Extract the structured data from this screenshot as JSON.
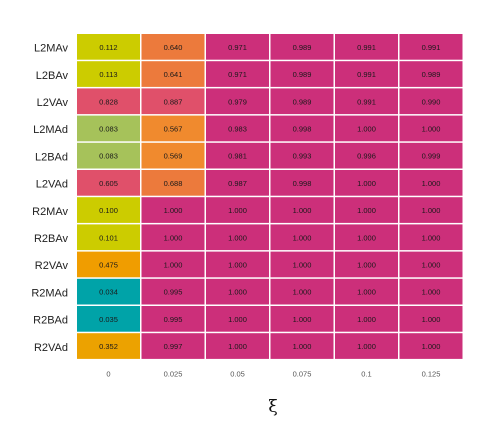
{
  "chart_data": {
    "type": "heatmap",
    "xlabel": "ξ",
    "columns": [
      "0",
      "0.025",
      "0.05",
      "0.075",
      "0.1",
      "0.125"
    ],
    "rows": [
      "L2MAv",
      "L2BAv",
      "L2VAv",
      "L2MAd",
      "L2BAd",
      "L2VAd",
      "R2MAv",
      "R2BAv",
      "R2VAv",
      "R2MAd",
      "R2BAd",
      "R2VAd"
    ],
    "values": [
      [
        "0.112",
        "0.640",
        "0.971",
        "0.989",
        "0.991",
        "0.991"
      ],
      [
        "0.113",
        "0.641",
        "0.971",
        "0.989",
        "0.991",
        "0.989"
      ],
      [
        "0.828",
        "0.887",
        "0.979",
        "0.989",
        "0.991",
        "0.990"
      ],
      [
        "0.083",
        "0.567",
        "0.983",
        "0.998",
        "1.000",
        "1.000"
      ],
      [
        "0.083",
        "0.569",
        "0.981",
        "0.993",
        "0.996",
        "0.999"
      ],
      [
        "0.605",
        "0.688",
        "0.987",
        "0.998",
        "1.000",
        "1.000"
      ],
      [
        "0.100",
        "1.000",
        "1.000",
        "1.000",
        "1.000",
        "1.000"
      ],
      [
        "0.101",
        "1.000",
        "1.000",
        "1.000",
        "1.000",
        "1.000"
      ],
      [
        "0.475",
        "1.000",
        "1.000",
        "1.000",
        "1.000",
        "1.000"
      ],
      [
        "0.034",
        "0.995",
        "1.000",
        "1.000",
        "1.000",
        "1.000"
      ],
      [
        "0.035",
        "0.995",
        "1.000",
        "1.000",
        "1.000",
        "1.000"
      ],
      [
        "0.352",
        "0.997",
        "1.000",
        "1.000",
        "1.000",
        "1.000"
      ]
    ],
    "cell_colors": [
      [
        "#cccc00",
        "#ec7a3c",
        "#cc2f7a",
        "#cc2f7a",
        "#cc2f7a",
        "#cc2f7a"
      ],
      [
        "#cccc00",
        "#ec7a3c",
        "#cc2f7a",
        "#cc2f7a",
        "#cc2f7a",
        "#cc2f7a"
      ],
      [
        "#e0506a",
        "#e0506a",
        "#cc2f7a",
        "#cc2f7a",
        "#cc2f7a",
        "#cc2f7a"
      ],
      [
        "#a6c25a",
        "#f08a2e",
        "#cc2f7a",
        "#cc2f7a",
        "#cc2f7a",
        "#cc2f7a"
      ],
      [
        "#a6c25a",
        "#f08a2e",
        "#cc2f7a",
        "#cc2f7a",
        "#cc2f7a",
        "#cc2f7a"
      ],
      [
        "#e0506a",
        "#ec7a3c",
        "#cc2f7a",
        "#cc2f7a",
        "#cc2f7a",
        "#cc2f7a"
      ],
      [
        "#cccc00",
        "#cc2f7a",
        "#cc2f7a",
        "#cc2f7a",
        "#cc2f7a",
        "#cc2f7a"
      ],
      [
        "#cccc00",
        "#cc2f7a",
        "#cc2f7a",
        "#cc2f7a",
        "#cc2f7a",
        "#cc2f7a"
      ],
      [
        "#f09d00",
        "#cc2f7a",
        "#cc2f7a",
        "#cc2f7a",
        "#cc2f7a",
        "#cc2f7a"
      ],
      [
        "#00a3a8",
        "#cc2f7a",
        "#cc2f7a",
        "#cc2f7a",
        "#cc2f7a",
        "#cc2f7a"
      ],
      [
        "#00a3a8",
        "#cc2f7a",
        "#cc2f7a",
        "#cc2f7a",
        "#cc2f7a",
        "#cc2f7a"
      ],
      [
        "#eca200",
        "#cc2f7a",
        "#cc2f7a",
        "#cc2f7a",
        "#cc2f7a",
        "#cc2f7a"
      ]
    ]
  }
}
